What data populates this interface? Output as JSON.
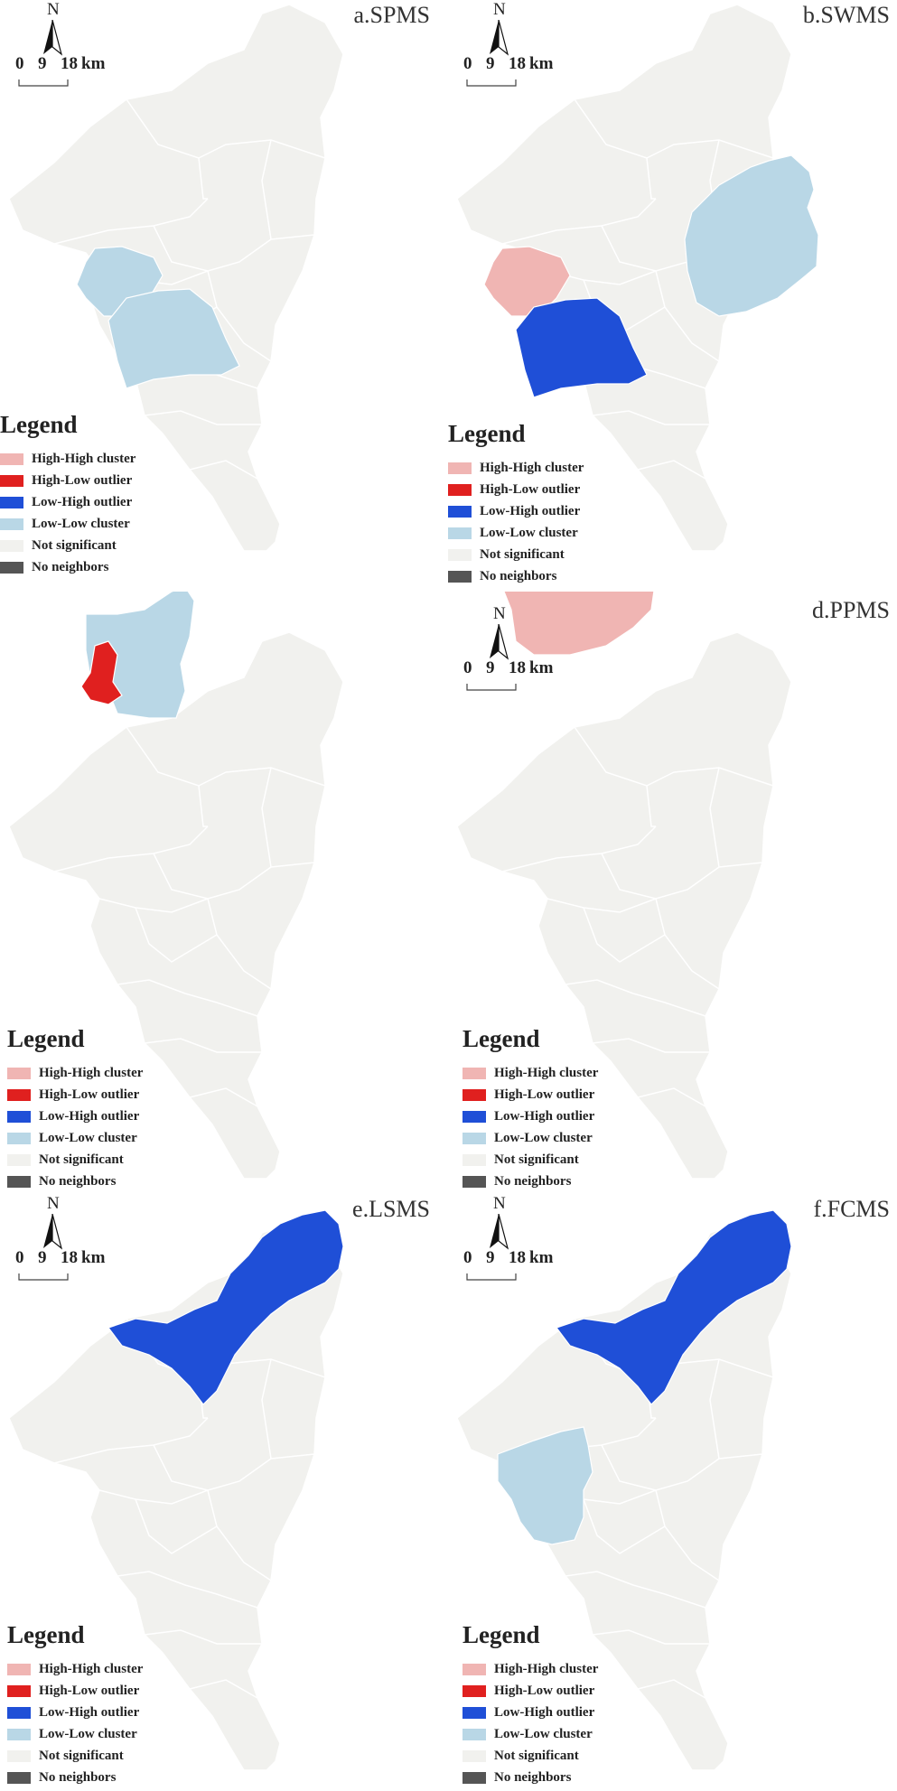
{
  "colors": {
    "hh": "#f0b5b3",
    "hl": "#e0201f",
    "lh": "#1f4fd7",
    "ll": "#b9d7e6",
    "ns": "#f1f1ee",
    "nn": "#555555",
    "boundary": "#ffffff"
  },
  "scale": {
    "label0": "0",
    "label1": "9",
    "label2": "18",
    "unit": "km"
  },
  "north_label": "N",
  "legend": {
    "title": "Legend",
    "items": [
      {
        "key": "hh",
        "label": "High-High cluster"
      },
      {
        "key": "hl",
        "label": "High-Low outlier"
      },
      {
        "key": "lh",
        "label": "Low-High outlier"
      },
      {
        "key": "ll",
        "label": "Low-Low cluster"
      },
      {
        "key": "ns",
        "label": "Not significant"
      },
      {
        "key": "nn",
        "label": "No neighbors"
      }
    ]
  },
  "panels": [
    {
      "id": "a",
      "title": "a.SPMS",
      "regions": [
        {
          "name": "west",
          "class": "ll"
        },
        {
          "name": "center_west",
          "class": "ll"
        }
      ]
    },
    {
      "id": "b",
      "title": "b.SWMS",
      "regions": [
        {
          "name": "east",
          "class": "ll"
        },
        {
          "name": "west",
          "class": "hh"
        },
        {
          "name": "center_west",
          "class": "lh"
        }
      ]
    },
    {
      "id": "c",
      "title": "",
      "regions": [
        {
          "name": "center_north",
          "class": "ll"
        },
        {
          "name": "west_small",
          "class": "hl"
        }
      ]
    },
    {
      "id": "d",
      "title": "d.PPMS",
      "regions": [
        {
          "name": "central",
          "class": "hh"
        }
      ]
    },
    {
      "id": "e",
      "title": "e.LSMS",
      "regions": [
        {
          "name": "north",
          "class": "lh"
        }
      ]
    },
    {
      "id": "f",
      "title": "f.FCMS",
      "regions": [
        {
          "name": "north",
          "class": "lh"
        },
        {
          "name": "center_west_big",
          "class": "ll"
        }
      ]
    }
  ]
}
